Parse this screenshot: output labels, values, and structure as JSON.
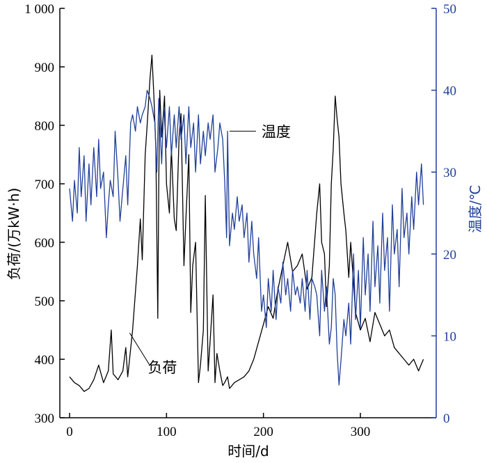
{
  "chart_data": {
    "type": "line",
    "xlabel": "时间/d",
    "ylabel_left": "负荷/(万kW·h)",
    "ylabel_right": "温度/℃",
    "x_ticks": [
      "0",
      "100",
      "200",
      "300"
    ],
    "y_left_ticks": [
      "300",
      "400",
      "500",
      "600",
      "700",
      "800",
      "900",
      "1 000"
    ],
    "y_right_ticks": [
      "0",
      "10",
      "20",
      "30",
      "40",
      "50"
    ],
    "xlim": [
      0,
      380
    ],
    "ylim_left": [
      300,
      1000
    ],
    "ylim_right": [
      0,
      50
    ],
    "grid": false,
    "colors": {
      "load": "#000000",
      "temperature": "#1f3f99",
      "right_axis": "#1f3f99",
      "left_axis": "#000000"
    },
    "annotations": [
      {
        "text": "负荷",
        "series": "load",
        "point": [
          62,
          445
        ]
      },
      {
        "text": "温度",
        "series": "temperature",
        "point": [
          165,
          35
        ]
      }
    ],
    "series": [
      {
        "name": "负荷",
        "axis": "left",
        "x": [
          0,
          5,
          10,
          15,
          20,
          25,
          30,
          35,
          40,
          43,
          45,
          50,
          55,
          58,
          60,
          65,
          70,
          73,
          75,
          78,
          80,
          83,
          85,
          87,
          89,
          91,
          92,
          93,
          95,
          98,
          100,
          103,
          105,
          108,
          110,
          113,
          115,
          118,
          120,
          123,
          125,
          127,
          130,
          133,
          135,
          138,
          140,
          143,
          145,
          148,
          150,
          152,
          155,
          158,
          160,
          163,
          165,
          170,
          175,
          180,
          185,
          190,
          195,
          200,
          205,
          210,
          215,
          220,
          225,
          230,
          235,
          240,
          245,
          250,
          255,
          258,
          260,
          263,
          265,
          268,
          270,
          272,
          274,
          276,
          278,
          280,
          283,
          285,
          288,
          290,
          295,
          300,
          305,
          310,
          315,
          320,
          325,
          330,
          335,
          340,
          345,
          350,
          355,
          360,
          365
        ],
        "values": [
          370,
          360,
          355,
          345,
          350,
          365,
          390,
          360,
          380,
          450,
          375,
          365,
          380,
          420,
          370,
          450,
          560,
          640,
          570,
          750,
          800,
          880,
          920,
          850,
          760,
          470,
          700,
          860,
          780,
          850,
          700,
          650,
          760,
          640,
          620,
          780,
          820,
          560,
          640,
          750,
          480,
          560,
          600,
          360,
          390,
          450,
          680,
          380,
          430,
          510,
          360,
          410,
          380,
          355,
          360,
          370,
          350,
          360,
          365,
          370,
          380,
          400,
          430,
          460,
          490,
          470,
          520,
          560,
          600,
          550,
          560,
          580,
          520,
          540,
          650,
          700,
          600,
          580,
          490,
          560,
          700,
          760,
          850,
          810,
          780,
          700,
          650,
          620,
          540,
          600,
          480,
          450,
          470,
          430,
          480,
          460,
          440,
          450,
          420,
          410,
          400,
          390,
          400,
          380,
          400
        ]
      },
      {
        "name": "温度",
        "axis": "right",
        "x": [
          0,
          3,
          5,
          8,
          10,
          12,
          15,
          17,
          20,
          22,
          25,
          28,
          30,
          32,
          35,
          38,
          40,
          42,
          45,
          47,
          50,
          52,
          55,
          58,
          60,
          63,
          65,
          68,
          70,
          73,
          75,
          78,
          80,
          83,
          85,
          88,
          90,
          92,
          95,
          97,
          100,
          103,
          105,
          108,
          110,
          113,
          115,
          118,
          120,
          123,
          125,
          128,
          130,
          133,
          135,
          138,
          140,
          143,
          145,
          148,
          150,
          153,
          155,
          158,
          160,
          162,
          163,
          165,
          168,
          170,
          173,
          175,
          178,
          180,
          183,
          185,
          188,
          190,
          193,
          195,
          198,
          200,
          203,
          205,
          208,
          210,
          213,
          215,
          218,
          220,
          223,
          225,
          228,
          230,
          233,
          235,
          238,
          240,
          243,
          245,
          248,
          250,
          253,
          255,
          258,
          260,
          263,
          265,
          268,
          270,
          272,
          274,
          276,
          278,
          280,
          283,
          285,
          288,
          290,
          293,
          295,
          298,
          300,
          303,
          305,
          308,
          310,
          313,
          315,
          318,
          320,
          323,
          325,
          328,
          330,
          333,
          335,
          338,
          340,
          343,
          345,
          348,
          350,
          353,
          355,
          358,
          360,
          363,
          365
        ],
        "values": [
          28,
          24,
          29,
          25,
          33,
          27,
          32,
          24,
          31,
          26,
          33,
          27,
          34,
          28,
          30,
          22,
          26,
          29,
          27,
          35,
          29,
          24,
          28,
          32,
          26,
          36,
          37,
          35,
          38,
          36,
          37,
          38,
          40,
          39,
          38,
          36,
          30,
          39,
          31,
          38,
          33,
          38,
          32,
          37,
          33,
          38,
          34,
          37,
          31,
          38,
          33,
          36,
          30,
          37,
          31,
          35,
          32,
          36,
          34,
          37,
          30,
          33,
          36,
          34,
          29,
          22,
          35,
          21,
          25,
          23,
          27,
          24,
          26,
          22,
          25,
          19,
          24,
          20,
          17,
          22,
          13,
          15,
          11,
          17,
          13,
          18,
          12,
          16,
          14,
          19,
          15,
          17,
          13,
          18,
          15,
          16,
          14,
          17,
          13,
          18,
          12,
          17,
          16,
          15,
          10,
          18,
          13,
          16,
          9,
          11,
          17,
          15,
          8,
          4,
          7,
          12,
          10,
          14,
          9,
          20,
          12,
          18,
          11,
          22,
          15,
          20,
          13,
          24,
          16,
          21,
          14,
          25,
          18,
          22,
          13,
          26,
          20,
          23,
          16,
          28,
          22,
          25,
          20,
          27,
          23,
          30,
          26,
          31,
          26
        ]
      }
    ]
  }
}
